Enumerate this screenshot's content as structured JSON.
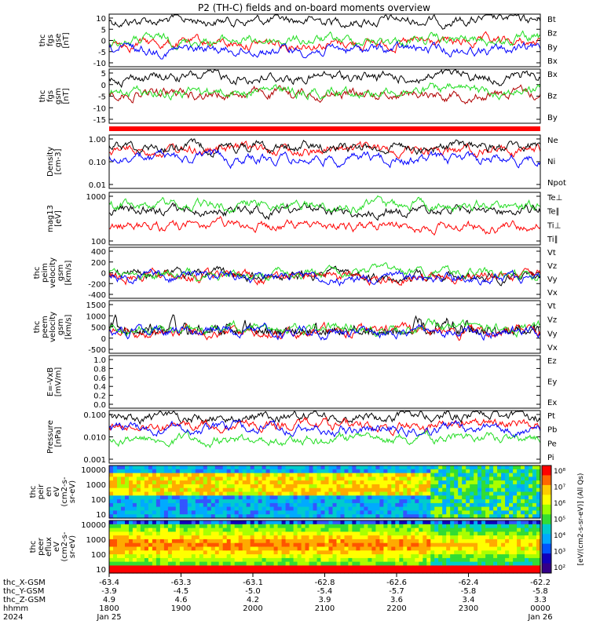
{
  "title": "P2 (TH-C) fields and on-board moments overview",
  "colors": {
    "black": "#000000",
    "red": "#ff0000",
    "green": "#22dd22",
    "blue": "#0000ff",
    "darkred": "#b00000"
  },
  "panels": [
    {
      "id": "fgs-gse",
      "ylabel": [
        "thc",
        "fgs",
        "gse",
        "[nT]"
      ],
      "ticks": [
        "10",
        "5",
        "0",
        "-5",
        "-10"
      ],
      "ylim": [
        -12,
        13
      ],
      "legend": [
        {
          "text": "Bt",
          "color": "black"
        },
        {
          "text": "Bz",
          "color": "red"
        },
        {
          "text": "By",
          "color": "green"
        },
        {
          "text": "Bx",
          "color": "blue"
        }
      ]
    },
    {
      "id": "fgs-gsm",
      "ylabel": [
        "thc",
        "fgs",
        "gsm",
        "[nT]"
      ],
      "ticks": [
        "5",
        "0",
        "-5",
        "-10",
        "-15"
      ],
      "ylim": [
        -19,
        7
      ],
      "legend": [
        {
          "text": "Bx",
          "color": "black"
        },
        {
          "text": "Bz",
          "color": "darkred"
        },
        {
          "text": "By",
          "color": "green"
        }
      ]
    },
    {
      "id": "density",
      "ylabel": [
        "Density",
        "[cm-3]"
      ],
      "ticks": [
        "1.00",
        "0.10",
        "0.01"
      ],
      "log": true,
      "ylim": [
        0.003,
        1.2
      ],
      "legend": [
        {
          "text": "Ne",
          "color": "red"
        },
        {
          "text": "Ni",
          "color": "black"
        },
        {
          "text": "Npot",
          "color": "blue"
        }
      ]
    },
    {
      "id": "temperature",
      "ylabel": [
        "mag13",
        "[eV]"
      ],
      "ticks": [
        "1000",
        "100"
      ],
      "log": true,
      "ylim": [
        20,
        3000
      ],
      "legend": [
        {
          "text": "Te⊥",
          "color": "red"
        },
        {
          "text": "Te∥",
          "color": "black"
        },
        {
          "text": "Ti⊥",
          "color": "green"
        },
        {
          "text": "Ti∥",
          "color": "green"
        }
      ]
    },
    {
      "id": "peim-velocity",
      "ylabel": [
        "thc",
        "peim",
        "velocity",
        "gsm",
        "[km/s]"
      ],
      "ticks": [
        "400",
        "200",
        "0",
        "-200",
        "-400"
      ],
      "ylim": [
        -450,
        550
      ],
      "legend": [
        {
          "text": "Vt",
          "color": "black"
        },
        {
          "text": "Vz",
          "color": "red"
        },
        {
          "text": "Vy",
          "color": "green"
        },
        {
          "text": "Vx",
          "color": "blue"
        }
      ]
    },
    {
      "id": "peem-velocity",
      "ylabel": [
        "thc",
        "peem",
        "velocity",
        "gsm",
        "[km/s]"
      ],
      "ticks": [
        "1500",
        "1000",
        "500",
        "0",
        "-500"
      ],
      "ylim": [
        -800,
        1600
      ],
      "legend": [
        {
          "text": "Vt",
          "color": "black"
        },
        {
          "text": "Vz",
          "color": "red"
        },
        {
          "text": "Vy",
          "color": "green"
        },
        {
          "text": "Vx",
          "color": "blue"
        }
      ]
    },
    {
      "id": "efield",
      "ylabel": [
        "E=-VxB",
        "[mV/m]"
      ],
      "ticks": [
        "1.0",
        "0.8",
        "0.6",
        "0.4",
        "0.2",
        "0.0"
      ],
      "ylim": [
        0,
        1
      ],
      "legend": [
        {
          "text": "Ez",
          "color": "red"
        },
        {
          "text": "Ey",
          "color": "green"
        },
        {
          "text": "Ex",
          "color": "blue"
        }
      ]
    },
    {
      "id": "pressure",
      "ylabel": [
        "Pressure",
        "[nPa]"
      ],
      "ticks": [
        "0.100",
        "0.010",
        "0.001"
      ],
      "log": true,
      "ylim": [
        0.0003,
        0.15
      ],
      "legend": [
        {
          "text": "Pt",
          "color": "black"
        },
        {
          "text": "Pb",
          "color": "red"
        },
        {
          "text": "Pe",
          "color": "green"
        },
        {
          "text": "Pi",
          "color": "blue"
        }
      ]
    },
    {
      "id": "peir-spec",
      "ylabel": [
        "thc",
        "peir",
        "en",
        "eV",
        "(cm2-s-",
        "sr-eV)"
      ],
      "ticks": [
        "10000",
        "1000",
        "100",
        "10"
      ],
      "spectrogram": true
    },
    {
      "id": "peer-spec",
      "ylabel": [
        "thc",
        "peer",
        "eflux",
        "eV",
        "(cm2-s-",
        "sr-eV)"
      ],
      "ticks": [
        "10000",
        "1000",
        "100",
        "10"
      ],
      "spectrogram": true
    }
  ],
  "colorbar": {
    "ticks": [
      "10⁸",
      "10⁷",
      "10⁶",
      "10⁵",
      "10⁴",
      "10³",
      "10²"
    ],
    "label": "[eV/(cm2-s-sr-eV)] (All Qs)"
  },
  "xaxis": {
    "row_labels": [
      "thc_X-GSM",
      "thc_Y-GSM",
      "thc_Z-GSM",
      "hhmm",
      "2024"
    ],
    "columns": [
      [
        "-63.4",
        "-3.9",
        "4.9",
        "1800",
        "Jan 25"
      ],
      [
        "-63.3",
        "-4.5",
        "4.6",
        "1900",
        ""
      ],
      [
        "-63.1",
        "-5.0",
        "4.2",
        "2000",
        ""
      ],
      [
        "-62.8",
        "-5.4",
        "3.9",
        "2100",
        ""
      ],
      [
        "-62.6",
        "-5.7",
        "3.6",
        "2200",
        ""
      ],
      [
        "-62.4",
        "-5.8",
        "3.4",
        "2300",
        ""
      ],
      [
        "-62.2",
        "-5.8",
        "3.3",
        "0000",
        "Jan 26"
      ]
    ]
  }
}
